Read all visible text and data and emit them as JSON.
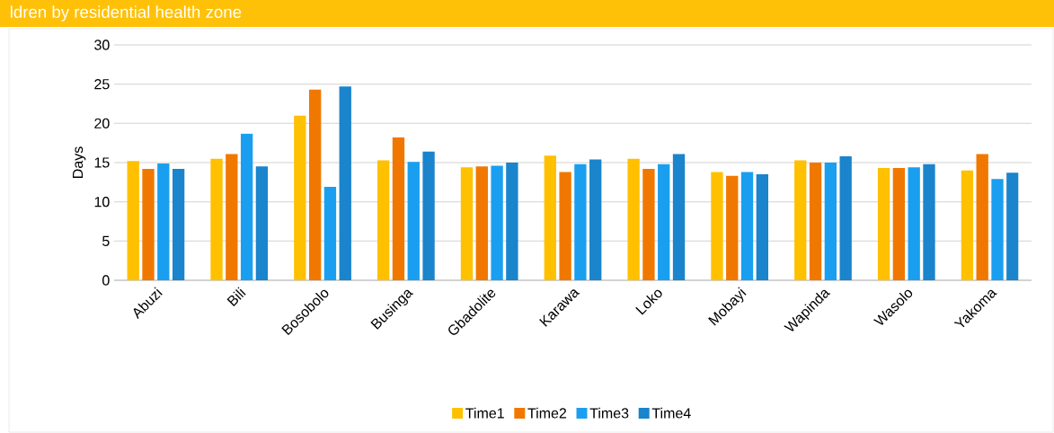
{
  "chart_data": {
    "type": "bar",
    "title": "ldren by residential health zone",
    "ylabel": "Days",
    "categories": [
      "Abuzi",
      "Bili",
      "Bosobolo",
      "Businga",
      "Gbadolite",
      "Karawa",
      "Loko",
      "Mobayi",
      "Wapinda",
      "Wasolo",
      "Yakoma"
    ],
    "series": [
      {
        "name": "Time1",
        "color": "#ffc000",
        "values": [
          15.2,
          15.5,
          21.0,
          15.3,
          14.4,
          15.9,
          15.5,
          13.8,
          15.3,
          14.3,
          14.0
        ]
      },
      {
        "name": "Time2",
        "color": "#f07800",
        "values": [
          14.2,
          16.1,
          24.3,
          18.2,
          14.5,
          13.8,
          14.2,
          13.3,
          15.0,
          14.3,
          16.1
        ]
      },
      {
        "name": "Time3",
        "color": "#1a9ff0",
        "values": [
          14.9,
          18.7,
          11.9,
          15.1,
          14.6,
          14.8,
          14.8,
          13.8,
          15.0,
          14.4,
          12.9
        ]
      },
      {
        "name": "Time4",
        "color": "#1a84cc",
        "values": [
          14.2,
          14.5,
          24.7,
          16.4,
          15.0,
          15.4,
          16.1,
          13.5,
          15.8,
          14.8,
          13.7
        ]
      }
    ],
    "ylim": [
      0,
      30
    ],
    "yticks": [
      0,
      5,
      10,
      15,
      20,
      25,
      30
    ],
    "grid": "y",
    "legend": "bottom"
  }
}
